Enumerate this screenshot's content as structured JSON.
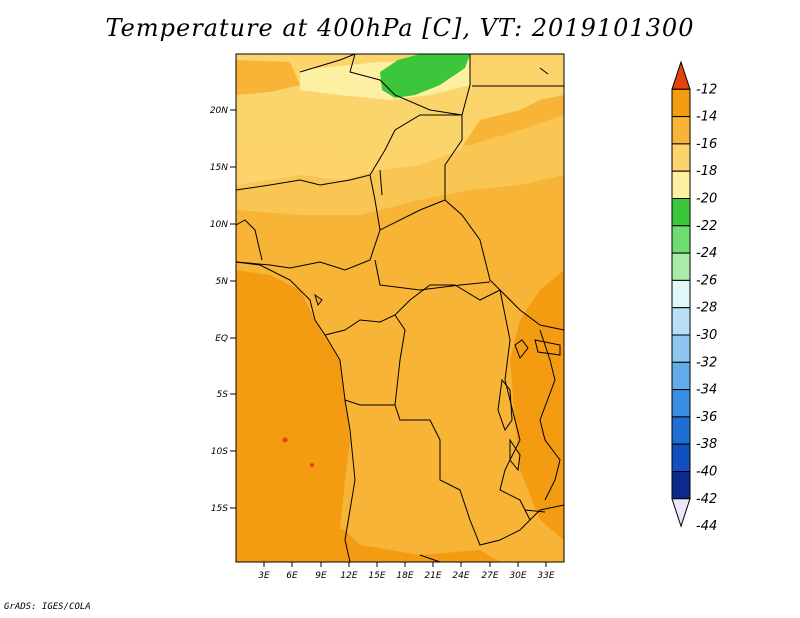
{
  "title": "Temperature at 400hPa [C], VT: 2019101300",
  "credit": "GrADS: IGES/COLA",
  "lat_labels": [
    "20N",
    "15N",
    "10N",
    "5N",
    "EQ",
    "5S",
    "10S",
    "15S"
  ],
  "lon_labels": [
    "3E",
    "6E",
    "9E",
    "12E",
    "15E",
    "18E",
    "21E",
    "24E",
    "27E",
    "30E",
    "33E"
  ],
  "colorbar": {
    "labels": [
      "-12",
      "-14",
      "-16",
      "-18",
      "-20",
      "-22",
      "-24",
      "-26",
      "-28",
      "-30",
      "-32",
      "-34",
      "-36",
      "-38",
      "-40",
      "-42",
      "-44"
    ],
    "colors": [
      "#e8420c",
      "#f39c12",
      "#f7b437",
      "#fcd46c",
      "#fef0a3",
      "#3cc63c",
      "#6fdc6f",
      "#a8eca8",
      "#e0f8f8",
      "#b8dff5",
      "#8ec6f0",
      "#63acea",
      "#3b8de3",
      "#1f6ed5",
      "#1250c0",
      "#0a2a8c",
      "#e8e8f8"
    ]
  },
  "map": {
    "lat_range": [
      -20,
      24.5
    ],
    "lon_range": [
      0.5,
      35.5
    ],
    "field_colors": {
      "light": "#fcd46c",
      "pale": "#fef0a3",
      "mid": "#f7b437",
      "warm": "#f39c12",
      "green": "#3cc63c",
      "hot": "#e8420c"
    }
  }
}
